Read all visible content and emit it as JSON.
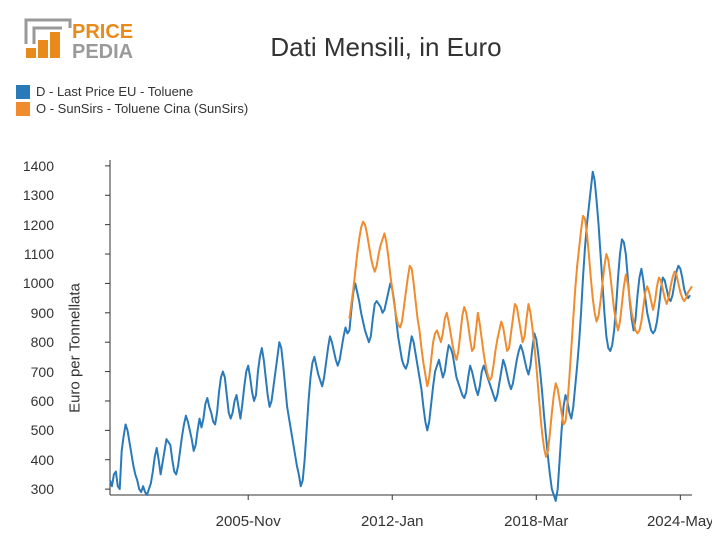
{
  "logo": {
    "text_top": "PRICE",
    "text_bottom": "PEDIA",
    "color_accent": "#e88b1a",
    "color_gray": "#9a9a9a"
  },
  "chart": {
    "type": "line",
    "title": "Dati Mensili, in Euro",
    "ylabel": "Euro per Tonnellata",
    "ylim": [
      280,
      1420
    ],
    "yticks": [
      300,
      400,
      500,
      600,
      700,
      800,
      900,
      1000,
      1100,
      1200,
      1300,
      1400
    ],
    "x_range": [
      0,
      299
    ],
    "xticks": [
      {
        "pos": 71,
        "label": "2005-Nov"
      },
      {
        "pos": 145,
        "label": "2012-Jan"
      },
      {
        "pos": 219,
        "label": "2018-Mar"
      },
      {
        "pos": 293,
        "label": "2024-May"
      }
    ],
    "background_color": "#ffffff",
    "axis_color": "#333333",
    "line_width": 2,
    "series": [
      {
        "name": "D - Last Price EU - Toluene",
        "color": "#2a7ab9",
        "start_index": 0,
        "values": [
          330,
          310,
          350,
          360,
          310,
          300,
          430,
          480,
          520,
          500,
          460,
          420,
          380,
          350,
          330,
          300,
          290,
          310,
          290,
          280,
          300,
          320,
          360,
          410,
          440,
          400,
          350,
          390,
          430,
          470,
          460,
          450,
          400,
          360,
          350,
          380,
          430,
          480,
          520,
          550,
          530,
          500,
          470,
          430,
          450,
          500,
          540,
          510,
          540,
          590,
          610,
          580,
          560,
          530,
          520,
          560,
          630,
          680,
          700,
          680,
          620,
          560,
          540,
          560,
          600,
          620,
          580,
          540,
          590,
          650,
          700,
          720,
          680,
          630,
          600,
          620,
          700,
          750,
          780,
          740,
          680,
          620,
          580,
          600,
          650,
          700,
          750,
          800,
          780,
          720,
          650,
          580,
          540,
          500,
          460,
          420,
          380,
          350,
          310,
          330,
          400,
          500,
          600,
          680,
          730,
          750,
          720,
          690,
          670,
          650,
          680,
          730,
          780,
          820,
          800,
          770,
          740,
          720,
          740,
          780,
          820,
          850,
          830,
          840,
          910,
          970,
          1000,
          970,
          940,
          900,
          870,
          840,
          820,
          800,
          820,
          880,
          930,
          940,
          930,
          920,
          900,
          910,
          940,
          970,
          1000,
          980,
          940,
          880,
          820,
          780,
          740,
          720,
          710,
          730,
          780,
          820,
          800,
          760,
          720,
          680,
          640,
          580,
          530,
          500,
          530,
          590,
          650,
          700,
          720,
          740,
          710,
          680,
          700,
          750,
          790,
          780,
          760,
          720,
          680,
          660,
          640,
          620,
          610,
          630,
          680,
          720,
          700,
          670,
          640,
          620,
          650,
          700,
          720,
          700,
          680,
          660,
          640,
          620,
          600,
          620,
          660,
          700,
          740,
          720,
          690,
          660,
          640,
          660,
          700,
          740,
          770,
          790,
          770,
          740,
          710,
          690,
          720,
          780,
          830,
          810,
          760,
          700,
          630,
          550,
          480,
          410,
          350,
          300,
          280,
          260,
          300,
          400,
          500,
          580,
          620,
          600,
          560,
          540,
          580,
          650,
          720,
          800,
          900,
          1020,
          1120,
          1200,
          1260,
          1320,
          1380,
          1350,
          1280,
          1200,
          1100,
          1000,
          900,
          820,
          780,
          770,
          790,
          840,
          920,
          1020,
          1100,
          1150,
          1140,
          1100,
          1020,
          940,
          880,
          840,
          880,
          960,
          1020,
          1050,
          1010,
          950,
          900,
          870,
          840,
          830,
          840,
          870,
          920,
          980,
          1020,
          1010,
          980,
          950,
          940,
          960,
          1000,
          1040,
          1060,
          1050,
          1020,
          980,
          960,
          950,
          960
        ]
      },
      {
        "name": "O - SunSirs - Toluene Cina (SunSirs)",
        "color": "#f08c2e",
        "start_index": 123,
        "values": [
          880,
          930,
          980,
          1040,
          1100,
          1150,
          1190,
          1210,
          1200,
          1170,
          1130,
          1090,
          1060,
          1040,
          1060,
          1100,
          1130,
          1150,
          1170,
          1140,
          1090,
          1030,
          980,
          930,
          890,
          860,
          850,
          870,
          920,
          970,
          1020,
          1060,
          1050,
          1000,
          940,
          880,
          840,
          780,
          730,
          690,
          650,
          680,
          740,
          800,
          830,
          840,
          820,
          800,
          830,
          880,
          900,
          870,
          830,
          790,
          760,
          740,
          770,
          830,
          890,
          920,
          900,
          860,
          810,
          770,
          780,
          840,
          900,
          860,
          810,
          760,
          720,
          690,
          670,
          680,
          720,
          770,
          810,
          840,
          870,
          850,
          810,
          770,
          780,
          830,
          880,
          930,
          920,
          880,
          840,
          800,
          820,
          880,
          930,
          900,
          850,
          790,
          720,
          640,
          560,
          490,
          440,
          410,
          430,
          490,
          560,
          620,
          660,
          640,
          600,
          560,
          520,
          530,
          590,
          680,
          780,
          880,
          980,
          1060,
          1120,
          1180,
          1230,
          1220,
          1170,
          1100,
          1020,
          950,
          900,
          870,
          890,
          940,
          1000,
          1060,
          1100,
          1080,
          1030,
          970,
          910,
          870,
          840,
          870,
          930,
          990,
          1030,
          1000,
          950,
          900,
          870,
          840,
          830,
          840,
          870,
          920,
          970,
          990,
          970,
          940,
          910,
          940,
          990,
          1020,
          1010,
          980,
          950,
          930,
          950,
          990,
          1020,
          1040,
          1030,
          1000,
          970,
          950,
          940,
          950,
          970,
          980,
          990
        ]
      }
    ],
    "legend": {
      "items": [
        {
          "color": "#2a7ab9",
          "label": "D - Last Price EU - Toluene"
        },
        {
          "color": "#f08c2e",
          "label": "O - SunSirs - Toluene Cina (SunSirs)"
        }
      ]
    }
  }
}
